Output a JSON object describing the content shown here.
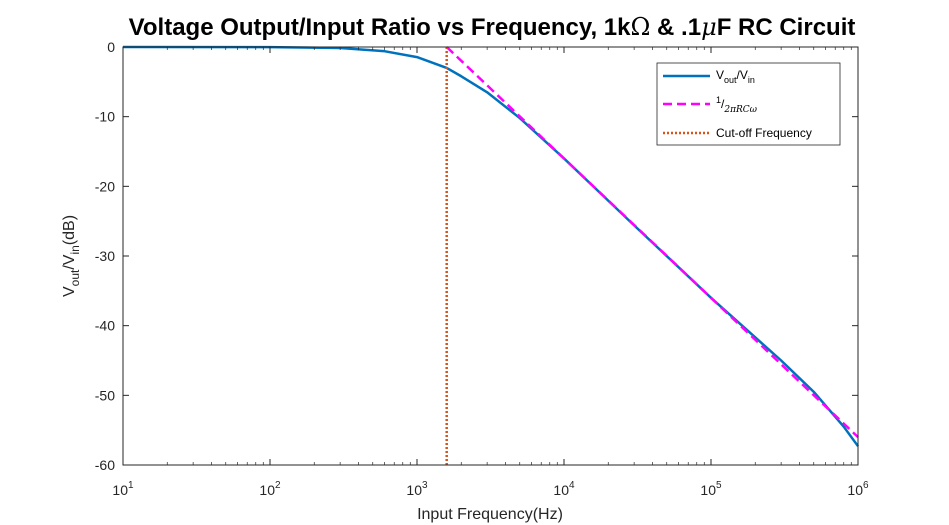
{
  "chart_data": {
    "type": "line",
    "title": "Voltage Output/Input Ratio vs Frequency, 1kΩ & .1μF RC Circuit",
    "title_parts": {
      "a": "Voltage Output/Input Ratio vs Frequency, 1k",
      "omega": "Ω",
      "b": " & .1",
      "mu": "μ",
      "c": "F RC Circuit"
    },
    "xlabel": "Input Frequency(Hz)",
    "ylabel": {
      "v1": "V",
      "sub1": "out",
      "slash": "/V",
      "sub2": "in",
      "unit": "(dB)"
    },
    "xscale": "log",
    "xlim": [
      10,
      1000000
    ],
    "ylim": [
      -60,
      0
    ],
    "grid": false,
    "legend_position": "top-right",
    "x_ticks": [
      {
        "base": "10",
        "exp": "1",
        "value": 10
      },
      {
        "base": "10",
        "exp": "2",
        "value": 100
      },
      {
        "base": "10",
        "exp": "3",
        "value": 1000
      },
      {
        "base": "10",
        "exp": "4",
        "value": 10000
      },
      {
        "base": "10",
        "exp": "5",
        "value": 100000
      },
      {
        "base": "10",
        "exp": "6",
        "value": 1000000
      }
    ],
    "y_ticks": [
      {
        "label": "0",
        "value": 0
      },
      {
        "label": "-10",
        "value": -10
      },
      {
        "label": "-20",
        "value": -20
      },
      {
        "label": "-30",
        "value": -30
      },
      {
        "label": "-40",
        "value": -40
      },
      {
        "label": "-50",
        "value": -50
      },
      {
        "label": "-60",
        "value": -60
      }
    ],
    "series": [
      {
        "name": "Vout/Vin",
        "legend": {
          "v": "V",
          "sub1": "out",
          "slash": "/V",
          "sub2": "in"
        },
        "color": "#0072BD",
        "style": "solid",
        "points": [
          [
            10,
            0.0
          ],
          [
            100,
            -0.02
          ],
          [
            300,
            -0.15
          ],
          [
            600,
            -0.6
          ],
          [
            1000,
            -1.45
          ],
          [
            1592,
            -3.0
          ],
          [
            2000,
            -4.2
          ],
          [
            3000,
            -6.5
          ],
          [
            5000,
            -10.2
          ],
          [
            10000,
            -16.0
          ],
          [
            30000,
            -25.6
          ],
          [
            100000,
            -36.0
          ],
          [
            300000,
            -45.0
          ],
          [
            500000,
            -49.5
          ],
          [
            800000,
            -54.5
          ],
          [
            1000000,
            -57.3
          ]
        ]
      },
      {
        "name": "1/2πRCω",
        "legend": {
          "num": "1",
          "slash": "/",
          "den": "2πRCω"
        },
        "color": "#FF00FF",
        "style": "dashed",
        "points": [
          [
            1592,
            0.0
          ],
          [
            3000,
            -5.5
          ],
          [
            10000,
            -16.0
          ],
          [
            100000,
            -36.0
          ],
          [
            1000000,
            -56.0
          ]
        ]
      },
      {
        "name": "Cut-off Frequency",
        "color": "#D95319",
        "style": "dotted",
        "x": 1592,
        "y_range": [
          -60,
          0
        ]
      }
    ]
  }
}
